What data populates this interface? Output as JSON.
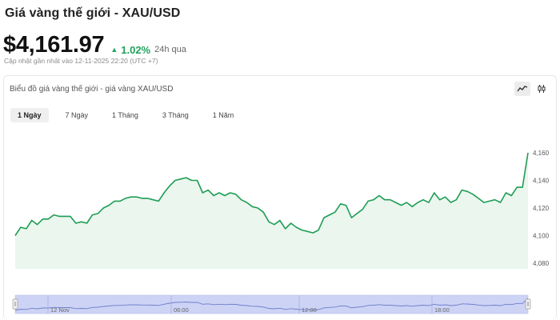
{
  "header": {
    "title": "Giá vàng thế giới - XAU/USD",
    "price": "$4,161.97",
    "change_pct": "1.02%",
    "change_label": "24h qua",
    "updated": "Cập nhật gần nhất vào 12-11-2025 22:20 (UTC +7)"
  },
  "chart": {
    "title": "Biểu đồ giá vàng thế giới - giá vàng XAU/USD",
    "tabs": [
      "1 Ngày",
      "7 Ngày",
      "1 Tháng",
      "3 Tháng",
      "1 Năm"
    ],
    "active_tab": "1 Ngày"
  },
  "navigator": {
    "labels": [
      "12 Nov",
      "06:00",
      "12:00",
      "18:00"
    ]
  },
  "colors": {
    "line": "#1f9d55",
    "area": "#eaf6ee",
    "up": "#1fa25a",
    "navigator_fill": "#cdd3f5"
  },
  "chart_data": {
    "type": "line",
    "title": "Biểu đồ giá vàng thế giới - giá vàng XAU/USD",
    "xlabel": "",
    "ylabel": "",
    "ylim": [
      4080,
      4165
    ],
    "yticks": [
      4080,
      4100,
      4120,
      4140,
      4160
    ],
    "ytick_labels": [
      "4,080",
      "4,100",
      "4,120",
      "4,140",
      "4,160"
    ],
    "grid": false,
    "series": [
      {
        "name": "",
        "values": [
          4100,
          4106,
          4105,
          4111,
          4108,
          4112,
          4112,
          4115,
          4114,
          4114,
          4114,
          4109,
          4110,
          4109,
          4115,
          4116,
          4120,
          4122,
          4125,
          4125,
          4127,
          4128,
          4128,
          4127,
          4127,
          4126,
          4125,
          4131,
          4136,
          4140,
          4141,
          4142,
          4140,
          4140,
          4131,
          4133,
          4129,
          4131,
          4129,
          4131,
          4130,
          4126,
          4124,
          4121,
          4120,
          4117,
          4110,
          4108,
          4111,
          4105,
          4109,
          4106,
          4104,
          4103,
          4102,
          4104,
          4113,
          4115,
          4117,
          4123,
          4122,
          4113,
          4116,
          4119,
          4125,
          4126,
          4129,
          4126,
          4126,
          4124,
          4122,
          4124,
          4121,
          4124,
          4126,
          4124,
          4131,
          4126,
          4128,
          4124,
          4126,
          4133,
          4132,
          4130,
          4127,
          4124,
          4125,
          4126,
          4124,
          4131,
          4129,
          4135,
          4135,
          4160
        ]
      }
    ]
  }
}
